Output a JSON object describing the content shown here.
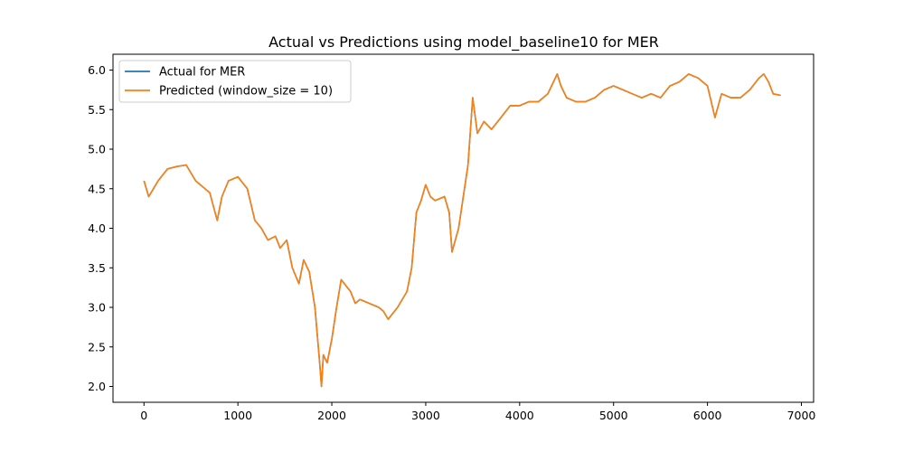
{
  "chart_data": {
    "type": "line",
    "title": "Actual vs Predictions using model_baseline10 for MER",
    "xlabel": "",
    "ylabel": "",
    "xlim": [
      -330,
      7130
    ],
    "ylim": [
      1.8,
      6.2
    ],
    "xticks": [
      0,
      1000,
      2000,
      3000,
      4000,
      5000,
      6000,
      7000
    ],
    "yticks": [
      2.0,
      2.5,
      3.0,
      3.5,
      4.0,
      4.5,
      5.0,
      5.5,
      6.0
    ],
    "grid": false,
    "legend": "top-left",
    "series": [
      {
        "name": "Actual for MER",
        "color": "#1f77b4",
        "x": [
          0,
          50,
          100,
          150,
          250,
          350,
          450,
          550,
          650,
          700,
          780,
          830,
          900,
          1000,
          1100,
          1180,
          1250,
          1320,
          1400,
          1450,
          1520,
          1580,
          1650,
          1700,
          1760,
          1820,
          1870,
          1890,
          1910,
          1950,
          2000,
          2050,
          2100,
          2200,
          2250,
          2300,
          2400,
          2500,
          2550,
          2600,
          2700,
          2800,
          2850,
          2900,
          2950,
          3000,
          3050,
          3100,
          3200,
          3250,
          3280,
          3350,
          3450,
          3500,
          3550,
          3620,
          3700,
          3800,
          3900,
          4000,
          4100,
          4200,
          4300,
          4400,
          4440,
          4500,
          4600,
          4700,
          4800,
          4900,
          5000,
          5100,
          5200,
          5300,
          5400,
          5500,
          5600,
          5700,
          5800,
          5900,
          5950,
          6000,
          6050,
          6080,
          6150,
          6250,
          6350,
          6450,
          6550,
          6600,
          6650,
          6700,
          6780
        ],
        "values": [
          4.6,
          4.4,
          4.5,
          4.6,
          4.75,
          4.78,
          4.8,
          4.6,
          4.5,
          4.45,
          4.1,
          4.4,
          4.6,
          4.65,
          4.5,
          4.1,
          4.0,
          3.85,
          3.9,
          3.75,
          3.85,
          3.5,
          3.3,
          3.6,
          3.45,
          3.0,
          2.3,
          2.0,
          2.4,
          2.3,
          2.6,
          3.0,
          3.35,
          3.2,
          3.05,
          3.1,
          3.05,
          3.0,
          2.95,
          2.85,
          3.0,
          3.2,
          3.5,
          4.2,
          4.35,
          4.55,
          4.4,
          4.35,
          4.4,
          4.2,
          3.7,
          4.0,
          4.8,
          5.65,
          5.2,
          5.35,
          5.25,
          5.4,
          5.55,
          5.55,
          5.6,
          5.6,
          5.7,
          5.95,
          5.8,
          5.65,
          5.6,
          5.6,
          5.65,
          5.75,
          5.8,
          5.75,
          5.7,
          5.65,
          5.7,
          5.65,
          5.8,
          5.85,
          5.95,
          5.9,
          5.85,
          5.8,
          5.55,
          5.4,
          5.7,
          5.65,
          5.65,
          5.75,
          5.9,
          5.95,
          5.85,
          5.7,
          5.68
        ]
      },
      {
        "name": "Predicted (window_size = 10)",
        "color": "#ff7f0e",
        "x": [
          0,
          50,
          100,
          150,
          250,
          350,
          450,
          550,
          650,
          700,
          780,
          830,
          900,
          1000,
          1100,
          1180,
          1250,
          1320,
          1400,
          1450,
          1520,
          1580,
          1650,
          1700,
          1760,
          1820,
          1870,
          1890,
          1910,
          1950,
          2000,
          2050,
          2100,
          2200,
          2250,
          2300,
          2400,
          2500,
          2550,
          2600,
          2700,
          2800,
          2850,
          2900,
          2950,
          3000,
          3050,
          3100,
          3200,
          3250,
          3280,
          3350,
          3450,
          3500,
          3550,
          3620,
          3700,
          3800,
          3900,
          4000,
          4100,
          4200,
          4300,
          4400,
          4440,
          4500,
          4600,
          4700,
          4800,
          4900,
          5000,
          5100,
          5200,
          5300,
          5400,
          5500,
          5600,
          5700,
          5800,
          5900,
          5950,
          6000,
          6050,
          6080,
          6150,
          6250,
          6350,
          6450,
          6550,
          6600,
          6650,
          6700,
          6780
        ],
        "values": [
          4.6,
          4.4,
          4.5,
          4.6,
          4.75,
          4.78,
          4.8,
          4.6,
          4.5,
          4.45,
          4.1,
          4.4,
          4.6,
          4.65,
          4.5,
          4.1,
          4.0,
          3.85,
          3.9,
          3.75,
          3.85,
          3.5,
          3.3,
          3.6,
          3.45,
          3.0,
          2.3,
          2.0,
          2.4,
          2.3,
          2.6,
          3.0,
          3.35,
          3.2,
          3.05,
          3.1,
          3.05,
          3.0,
          2.95,
          2.85,
          3.0,
          3.2,
          3.5,
          4.2,
          4.35,
          4.55,
          4.4,
          4.35,
          4.4,
          4.2,
          3.7,
          4.0,
          4.8,
          5.65,
          5.2,
          5.35,
          5.25,
          5.4,
          5.55,
          5.55,
          5.6,
          5.6,
          5.7,
          5.95,
          5.8,
          5.65,
          5.6,
          5.6,
          5.65,
          5.75,
          5.8,
          5.75,
          5.7,
          5.65,
          5.7,
          5.65,
          5.8,
          5.85,
          5.95,
          5.9,
          5.85,
          5.8,
          5.55,
          5.4,
          5.7,
          5.65,
          5.65,
          5.75,
          5.9,
          5.95,
          5.85,
          5.7,
          5.68
        ]
      }
    ]
  }
}
